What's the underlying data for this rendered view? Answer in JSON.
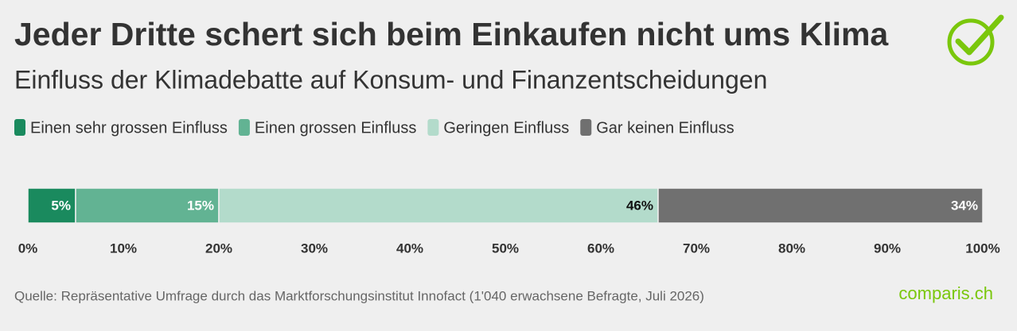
{
  "chart_data": {
    "type": "bar",
    "orientation": "horizontal",
    "stacked": true,
    "title": "Jeder Dritte schert sich beim Einkaufen nicht ums Klima",
    "subtitle": "Einfluss der Klimadebatte auf Konsum- und Finanzentscheidungen",
    "series": [
      {
        "name": "Einen sehr grossen Einfluss",
        "color": "#1a8a5e",
        "label_color": "#ffffff",
        "values": [
          5
        ],
        "value_labels": [
          "5%"
        ]
      },
      {
        "name": "Einen grossen Einfluss",
        "color": "#62b393",
        "label_color": "#ffffff",
        "values": [
          15
        ],
        "value_labels": [
          "15%"
        ]
      },
      {
        "name": "Geringen Einfluss",
        "color": "#b3dbcb",
        "label_color": "#111111",
        "values": [
          46
        ],
        "value_labels": [
          "46%"
        ]
      },
      {
        "name": "Gar keinen Einfluss",
        "color": "#707070",
        "label_color": "#ffffff",
        "values": [
          34
        ],
        "value_labels": [
          "34%"
        ]
      }
    ],
    "xlim": [
      0,
      100
    ],
    "xticks": [
      {
        "value": 0,
        "label": "0%"
      },
      {
        "value": 10,
        "label": "10%"
      },
      {
        "value": 20,
        "label": "20%"
      },
      {
        "value": 30,
        "label": "30%"
      },
      {
        "value": 40,
        "label": "40%"
      },
      {
        "value": 50,
        "label": "50%"
      },
      {
        "value": 60,
        "label": "60%"
      },
      {
        "value": 70,
        "label": "70%"
      },
      {
        "value": 80,
        "label": "80%"
      },
      {
        "value": 90,
        "label": "90%"
      },
      {
        "value": 100,
        "label": "100%"
      }
    ],
    "legend_position": "top",
    "source": "Quelle: Repräsentative Umfrage durch das Marktforschungsinstitut Innofact (1'040 erwachsene Befragte, Juli 2026)",
    "brand": "comparis.ch"
  }
}
